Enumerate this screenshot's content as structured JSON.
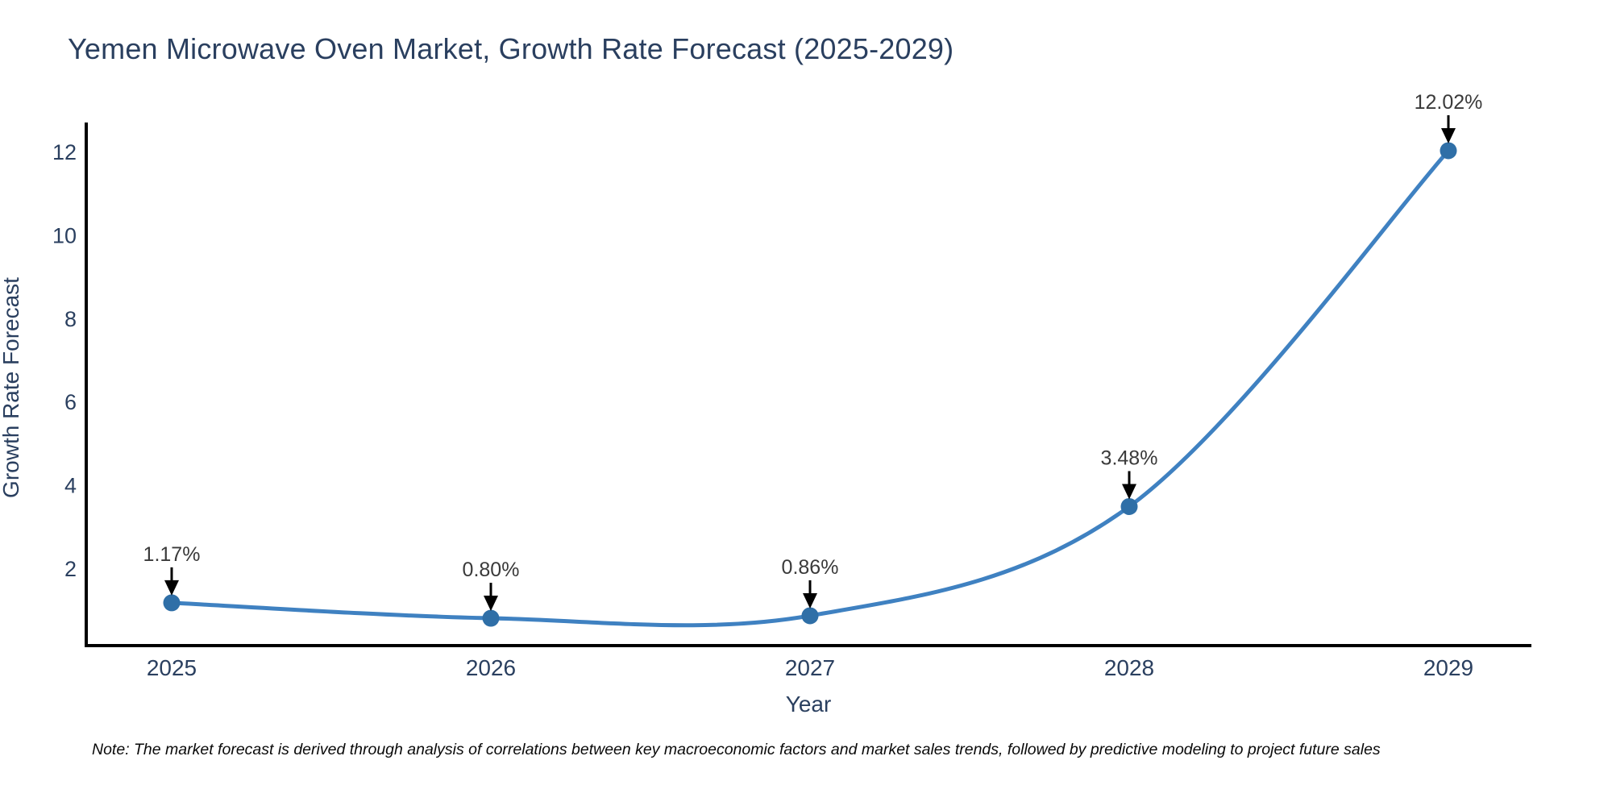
{
  "chart_data": {
    "type": "line",
    "line_shape": "spline",
    "title": "Yemen Microwave Oven Market, Growth Rate Forecast (2025-2029)",
    "xlabel": "Year",
    "ylabel": "Growth Rate Forecast",
    "categories": [
      "2025",
      "2026",
      "2027",
      "2028",
      "2029"
    ],
    "series": [
      {
        "name": "Growth Rate Forecast",
        "values": [
          1.17,
          0.8,
          0.86,
          3.48,
          12.02
        ],
        "point_labels": [
          "1.17%",
          "0.80%",
          "0.86%",
          "3.48%",
          "12.02%"
        ]
      }
    ],
    "yticks": [
      2,
      4,
      6,
      8,
      10,
      12
    ],
    "ylim": [
      0.12,
      12.55
    ],
    "grid": false,
    "legend_position": "none",
    "colors": {
      "line": "#3f81c1",
      "marker": "#2f6fa7",
      "axis_line": "#000000",
      "tick_text": "#2a3f5f",
      "annotation_text": "#3a3a3a",
      "annotation_arrow": "#000000"
    }
  },
  "note": "Note: The market forecast is derived through analysis of correlations between key macroeconomic factors and market sales trends, followed by predictive modeling to project future sales"
}
